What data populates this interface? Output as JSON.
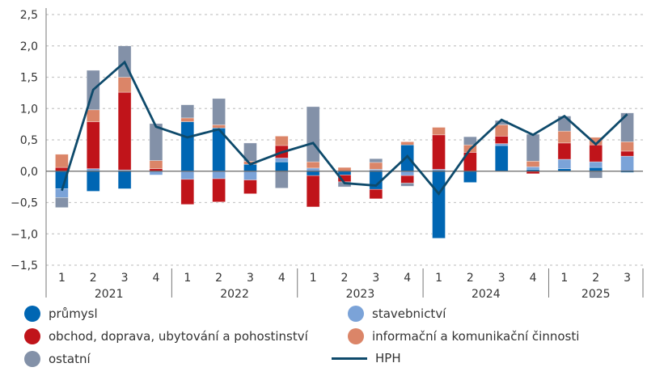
{
  "chart_data": {
    "type": "bar",
    "subtype": "stacked bar with line",
    "title": "",
    "xlabel": "",
    "ylabel": "",
    "ylim": [
      -1.5,
      2.5
    ],
    "yticks": [
      -1.5,
      -1.0,
      -0.5,
      0.0,
      0.5,
      1.0,
      1.5,
      2.0,
      2.5
    ],
    "ytick_labels": [
      "−1,5",
      "−1,0",
      "−0,5",
      "0,0",
      "0,5",
      "1,0",
      "1,5",
      "2,0",
      "2,5"
    ],
    "grid": "horizontal dashed",
    "legend_position": "bottom",
    "categories": [
      "1",
      "2",
      "3",
      "4",
      "1",
      "2",
      "3",
      "4",
      "1",
      "2",
      "3",
      "4",
      "1",
      "2",
      "3",
      "4",
      "1",
      "2",
      "3"
    ],
    "years": [
      {
        "label": "2021",
        "quarters": 4
      },
      {
        "label": "2022",
        "quarters": 4
      },
      {
        "label": "2023",
        "quarters": 4
      },
      {
        "label": "2024",
        "quarters": 4
      },
      {
        "label": "2025",
        "quarters": 3
      }
    ],
    "series": [
      {
        "name": "průmysl",
        "type": "bar",
        "color": "#0066b3",
        "values": [
          -0.28,
          -0.32,
          -0.28,
          0.0,
          0.79,
          0.69,
          0.11,
          0.15,
          -0.07,
          -0.06,
          -0.29,
          0.42,
          -1.07,
          -0.18,
          0.41,
          0.03,
          0.04,
          0.06,
          -0.02
        ]
      },
      {
        "name": "stavebnictví",
        "type": "bar",
        "color": "#7ba3d8",
        "values": [
          -0.14,
          0.04,
          0.02,
          -0.06,
          -0.13,
          -0.12,
          -0.14,
          0.06,
          0.05,
          0.0,
          0.03,
          -0.07,
          0.03,
          0.0,
          0.03,
          0.04,
          0.15,
          0.09,
          0.24
        ]
      },
      {
        "name": "obchod, doprava, ubytování a pohostinství",
        "type": "bar",
        "color": "#c0141a",
        "values": [
          0.06,
          0.75,
          1.24,
          0.04,
          -0.4,
          -0.37,
          -0.22,
          0.2,
          -0.5,
          -0.11,
          -0.15,
          -0.12,
          0.55,
          0.3,
          0.12,
          -0.04,
          0.26,
          0.27,
          0.08
        ]
      },
      {
        "name": "informační a komunikační činnosti",
        "type": "bar",
        "color": "#db8568",
        "values": [
          0.21,
          0.19,
          0.24,
          0.13,
          0.06,
          0.05,
          0.05,
          0.15,
          0.1,
          0.06,
          0.11,
          0.05,
          0.12,
          0.12,
          0.18,
          0.09,
          0.19,
          0.12,
          0.15
        ]
      },
      {
        "name": "ostatní",
        "type": "bar",
        "color": "#8391a8",
        "values": [
          -0.16,
          0.63,
          0.5,
          0.59,
          0.21,
          0.42,
          0.29,
          -0.27,
          0.88,
          -0.08,
          0.06,
          -0.05,
          0.0,
          0.13,
          0.07,
          0.43,
          0.24,
          -0.11,
          0.46
        ]
      },
      {
        "name": "HPH",
        "type": "line",
        "color": "#0e4a6b",
        "values": [
          -0.31,
          1.3,
          1.74,
          0.71,
          0.54,
          0.67,
          0.11,
          0.3,
          0.45,
          -0.19,
          -0.23,
          0.24,
          -0.36,
          0.35,
          0.82,
          0.58,
          0.88,
          0.43,
          0.91
        ]
      }
    ]
  },
  "legend": [
    {
      "label": "průmysl",
      "marker": "dot",
      "color": "#0066b3"
    },
    {
      "label": "stavebnictví",
      "marker": "dot",
      "color": "#7ba3d8"
    },
    {
      "label": "obchod, doprava, ubytování a pohostinství",
      "marker": "dot",
      "color": "#c0141a"
    },
    {
      "label": "informační a komunikační činnosti",
      "marker": "dot",
      "color": "#db8568"
    },
    {
      "label": "ostatní",
      "marker": "dot",
      "color": "#8391a8"
    },
    {
      "label": "HPH",
      "marker": "line",
      "color": "#0e4a6b"
    }
  ]
}
